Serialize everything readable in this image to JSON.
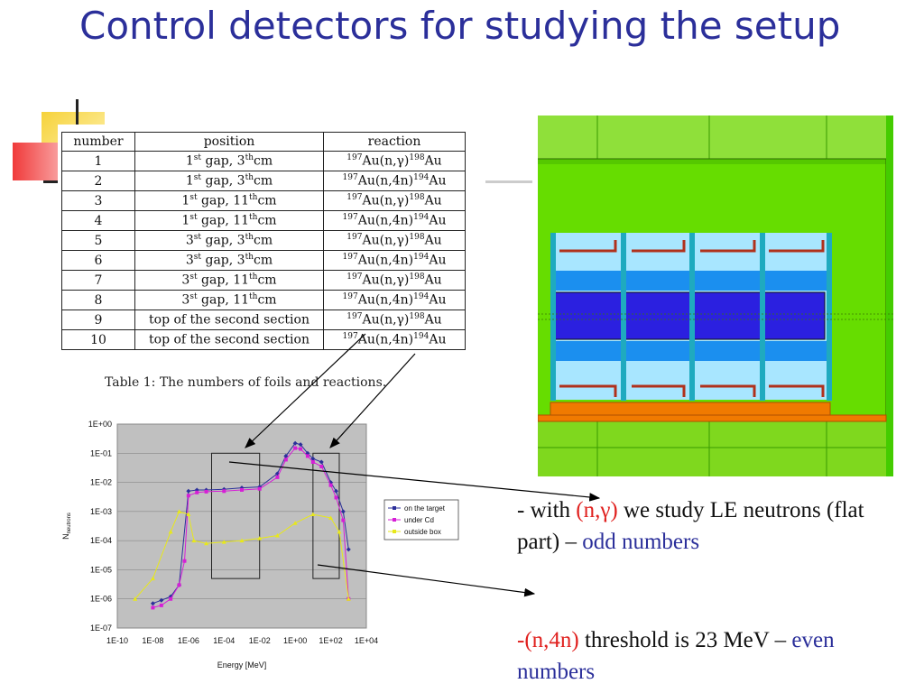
{
  "slide": {
    "title": "Control detectors for studying the setup"
  },
  "table": {
    "headers": [
      "number",
      "position",
      "reaction"
    ],
    "rows": [
      {
        "number": "1",
        "pos": "1",
        "pos_sup": "st",
        "pos_mid": " gap, 3",
        "pos_sup2": "th",
        "pos_end": "cm",
        "r_a": "197",
        "r_b": "Au(n,γ)",
        "r_c": "198",
        "r_d": "Au"
      },
      {
        "number": "2",
        "pos": "1",
        "pos_sup": "st",
        "pos_mid": " gap, 3",
        "pos_sup2": "th",
        "pos_end": "cm",
        "r_a": "197",
        "r_b": "Au(n,4n)",
        "r_c": "194",
        "r_d": "Au"
      },
      {
        "number": "3",
        "pos": "1",
        "pos_sup": "st",
        "pos_mid": " gap, 11",
        "pos_sup2": "th",
        "pos_end": "cm",
        "r_a": "197",
        "r_b": "Au(n,γ)",
        "r_c": "198",
        "r_d": "Au"
      },
      {
        "number": "4",
        "pos": "1",
        "pos_sup": "st",
        "pos_mid": " gap, 11",
        "pos_sup2": "th",
        "pos_end": "cm",
        "r_a": "197",
        "r_b": "Au(n,4n)",
        "r_c": "194",
        "r_d": "Au"
      },
      {
        "number": "5",
        "pos": "3",
        "pos_sup": "st",
        "pos_mid": " gap, 3",
        "pos_sup2": "th",
        "pos_end": "cm",
        "r_a": "197",
        "r_b": "Au(n,γ)",
        "r_c": "198",
        "r_d": "Au"
      },
      {
        "number": "6",
        "pos": "3",
        "pos_sup": "st",
        "pos_mid": " gap, 3",
        "pos_sup2": "th",
        "pos_end": "cm",
        "r_a": "197",
        "r_b": "Au(n,4n)",
        "r_c": "194",
        "r_d": "Au"
      },
      {
        "number": "7",
        "pos": "3",
        "pos_sup": "st",
        "pos_mid": " gap, 11",
        "pos_sup2": "th",
        "pos_end": "cm",
        "r_a": "197",
        "r_b": "Au(n,γ)",
        "r_c": "198",
        "r_d": "Au"
      },
      {
        "number": "8",
        "pos": "3",
        "pos_sup": "st",
        "pos_mid": " gap, 11",
        "pos_sup2": "th",
        "pos_end": "cm",
        "r_a": "197",
        "r_b": "Au(n,4n)",
        "r_c": "194",
        "r_d": "Au"
      },
      {
        "number": "9",
        "pos": "top of the second section",
        "pos_sup": "",
        "pos_mid": "",
        "pos_sup2": "",
        "pos_end": "",
        "r_a": "197",
        "r_b": "Au(n,γ)",
        "r_c": "198",
        "r_d": "Au"
      },
      {
        "number": "10",
        "pos": "top of the second section",
        "pos_sup": "",
        "pos_mid": "",
        "pos_sup2": "",
        "pos_end": "",
        "r_a": "197",
        "r_b": "Au(n,4n)",
        "r_c": "194",
        "r_d": "Au"
      }
    ],
    "caption": "Table 1: The numbers of foils and reactions."
  },
  "chart_data": {
    "type": "line",
    "xscale": "log",
    "yscale": "log",
    "xlim": [
      1e-10,
      10000.0
    ],
    "ylim": [
      1e-07,
      1
    ],
    "xticks": [
      "1E-10",
      "1E-08",
      "1E-06",
      "1E-04",
      "1E-02",
      "1E+00",
      "1E+02",
      "1E+04"
    ],
    "yticks": [
      "1E+00",
      "1E-01",
      "1E-02",
      "1E-03",
      "1E-04",
      "1E-05",
      "1E-06",
      "1E-07"
    ],
    "xlabel": "Energy [MeV]",
    "ylabel": "N",
    "ylabel_sub": "neutrons",
    "legend_position": "right",
    "series": [
      {
        "name": "on the target",
        "color": "#2b2f9a",
        "marker": "diamond",
        "points": [
          [
            1e-08,
            7e-07
          ],
          [
            3e-08,
            9e-07
          ],
          [
            1e-07,
            1.2e-06
          ],
          [
            3e-07,
            3e-06
          ],
          [
            1e-06,
            0.005
          ],
          [
            3e-06,
            0.0055
          ],
          [
            1e-05,
            0.0055
          ],
          [
            0.0001,
            0.0058
          ],
          [
            0.001,
            0.0065
          ],
          [
            0.01,
            0.007
          ],
          [
            0.1,
            0.02
          ],
          [
            0.3,
            0.08
          ],
          [
            1,
            0.22
          ],
          [
            2,
            0.2
          ],
          [
            5,
            0.1
          ],
          [
            10,
            0.065
          ],
          [
            30,
            0.05
          ],
          [
            100,
            0.01
          ],
          [
            200,
            0.005
          ],
          [
            500,
            0.001
          ],
          [
            1000,
            5e-05
          ]
        ]
      },
      {
        "name": "under Cd",
        "color": "#d61fd6",
        "marker": "square",
        "points": [
          [
            1e-08,
            5e-07
          ],
          [
            3e-08,
            6e-07
          ],
          [
            1e-07,
            1e-06
          ],
          [
            3e-07,
            3e-06
          ],
          [
            6e-07,
            2e-05
          ],
          [
            1e-06,
            0.0035
          ],
          [
            3e-06,
            0.0045
          ],
          [
            1e-05,
            0.0048
          ],
          [
            0.0001,
            0.005
          ],
          [
            0.001,
            0.0055
          ],
          [
            0.01,
            0.006
          ],
          [
            0.1,
            0.015
          ],
          [
            0.3,
            0.06
          ],
          [
            1,
            0.15
          ],
          [
            2,
            0.14
          ],
          [
            5,
            0.08
          ],
          [
            10,
            0.05
          ],
          [
            30,
            0.035
          ],
          [
            100,
            0.008
          ],
          [
            200,
            0.003
          ],
          [
            500,
            0.0005
          ],
          [
            1000,
            1e-06
          ]
        ]
      },
      {
        "name": "outside box",
        "color": "#e8e81a",
        "marker": "triangle",
        "points": [
          [
            1e-09,
            1e-06
          ],
          [
            1e-08,
            5e-06
          ],
          [
            1e-07,
            0.0002
          ],
          [
            3e-07,
            0.001
          ],
          [
            1e-06,
            0.0008
          ],
          [
            2e-06,
            0.0001
          ],
          [
            1e-05,
            8e-05
          ],
          [
            0.0001,
            9e-05
          ],
          [
            0.001,
            0.0001
          ],
          [
            0.01,
            0.00012
          ],
          [
            0.1,
            0.00015
          ],
          [
            1,
            0.0004
          ],
          [
            10,
            0.0008
          ],
          [
            100,
            0.0006
          ],
          [
            300,
            0.0002
          ],
          [
            1000,
            1e-06
          ]
        ]
      }
    ]
  },
  "text": {
    "line1_a": "- with ",
    "line1_b": "(n,γ)",
    "line1_c": " we study LE neutrons (flat part) – ",
    "line1_d": "odd numbers",
    "line2_a": "-(n,4n)",
    "line2_b": " threshold is 23 MeV – ",
    "line2_c": "even numbers"
  },
  "colors": {
    "title": "#2b2f9a",
    "accent_red": "#e0201e",
    "accent_blue": "#2b2f9a",
    "plot_bg": "#c0c0c0",
    "detector_bg": "#66dd00"
  }
}
